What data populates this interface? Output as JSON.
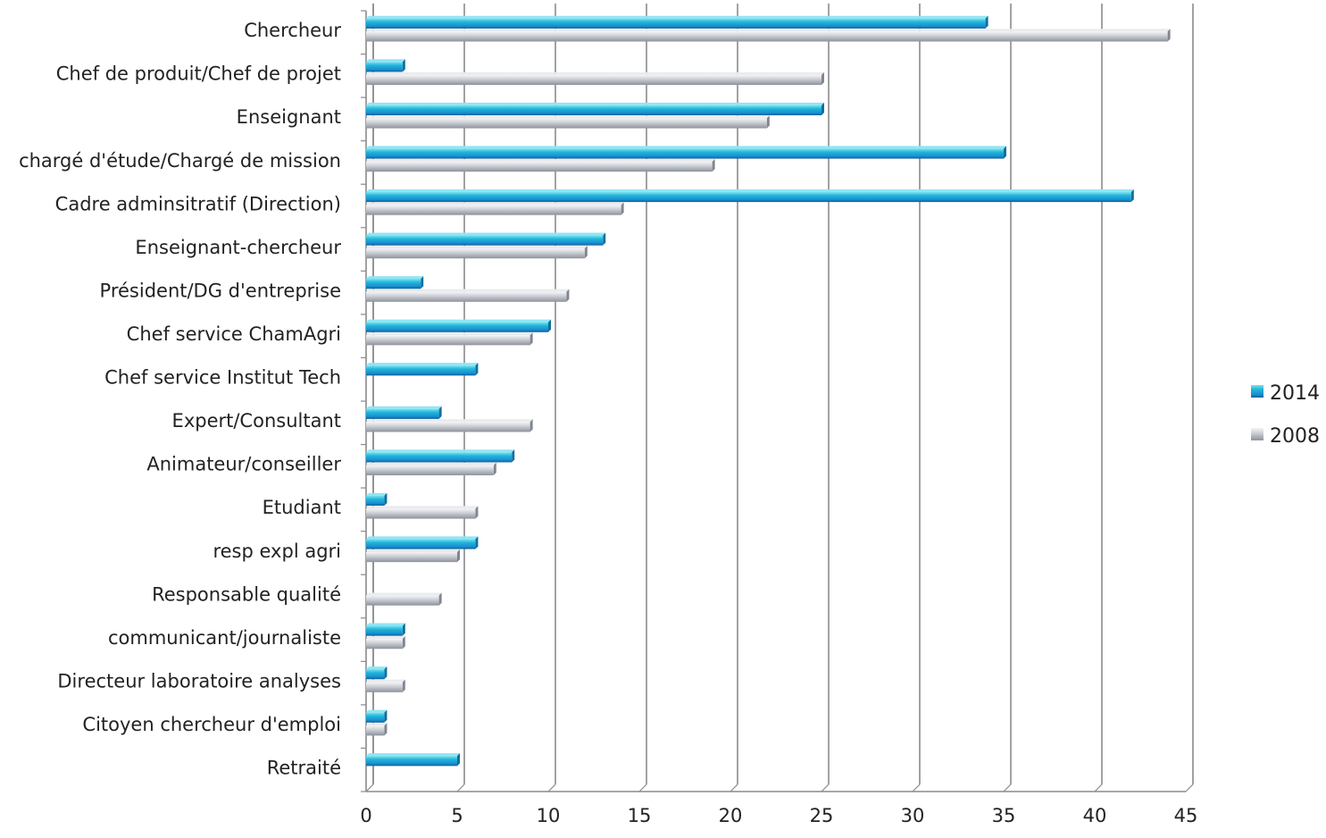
{
  "chart_data": {
    "type": "bar",
    "orientation": "horizontal",
    "categories": [
      "Chercheur",
      "Chef de produit/Chef de projet",
      "Enseignant",
      "chargé d'étude/Chargé de mission",
      "Cadre adminsitratif (Direction)",
      "Enseignant-chercheur",
      "Président/DG d'entreprise",
      "Chef service ChamAgri",
      "Chef service Institut Tech",
      "Expert/Consultant",
      "Animateur/conseiller",
      "Etudiant",
      "resp expl agri",
      "Responsable qualité",
      "communicant/journaliste",
      "Directeur laboratoire analyses",
      "Citoyen chercheur d'emploi",
      "Retraité"
    ],
    "series": [
      {
        "name": "2014",
        "color": "#1fb6d9",
        "values": [
          34,
          2,
          25,
          35,
          42,
          13,
          3,
          10,
          6,
          4,
          8,
          1,
          6,
          0,
          2,
          1,
          1,
          5
        ]
      },
      {
        "name": "2008",
        "color": "#bfc3c9",
        "values": [
          44,
          25,
          22,
          19,
          14,
          12,
          11,
          9,
          0,
          9,
          7,
          6,
          5,
          4,
          2,
          2,
          1,
          0
        ]
      }
    ],
    "xlim": [
      0,
      45
    ],
    "xticks": [
      "0",
      "5",
      "10",
      "15",
      "20",
      "25",
      "30",
      "35",
      "40",
      "45"
    ],
    "grid": true,
    "legend_position": "right",
    "title": "",
    "xlabel": "",
    "ylabel": ""
  }
}
